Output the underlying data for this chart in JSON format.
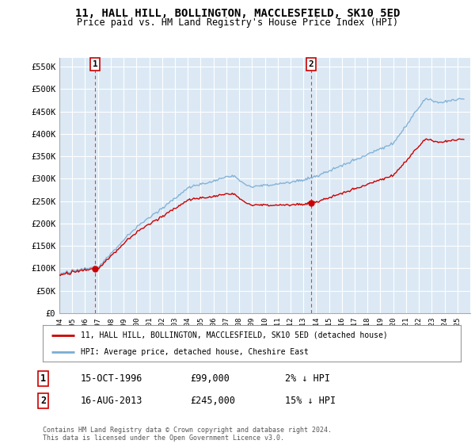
{
  "title_line1": "11, HALL HILL, BOLLINGTON, MACCLESFIELD, SK10 5ED",
  "title_line2": "Price paid vs. HM Land Registry's House Price Index (HPI)",
  "ylim": [
    0,
    570000
  ],
  "yticks": [
    0,
    50000,
    100000,
    150000,
    200000,
    250000,
    300000,
    350000,
    400000,
    450000,
    500000,
    550000
  ],
  "ytick_labels": [
    "£0",
    "£50K",
    "£100K",
    "£150K",
    "£200K",
    "£250K",
    "£300K",
    "£350K",
    "£400K",
    "£450K",
    "£500K",
    "£550K"
  ],
  "sale1_date": 1996.79,
  "sale1_price": 99000,
  "sale1_label": "1",
  "sale2_date": 2013.62,
  "sale2_price": 245000,
  "sale2_label": "2",
  "sale_color": "#cc0000",
  "hpi_color": "#7aadd4",
  "legend_line1": "11, HALL HILL, BOLLINGTON, MACCLESFIELD, SK10 5ED (detached house)",
  "legend_line2": "HPI: Average price, detached house, Cheshire East",
  "table_row1_num": "1",
  "table_row1_date": "15-OCT-1996",
  "table_row1_price": "£99,000",
  "table_row1_hpi": "2% ↓ HPI",
  "table_row2_num": "2",
  "table_row2_date": "16-AUG-2013",
  "table_row2_price": "£245,000",
  "table_row2_hpi": "15% ↓ HPI",
  "footnote": "Contains HM Land Registry data © Crown copyright and database right 2024.\nThis data is licensed under the Open Government Licence v3.0.",
  "bg_color": "#ffffff",
  "plot_bg_color": "#dce9f5",
  "grid_color": "#ffffff",
  "xmin": 1994,
  "xmax": 2026
}
